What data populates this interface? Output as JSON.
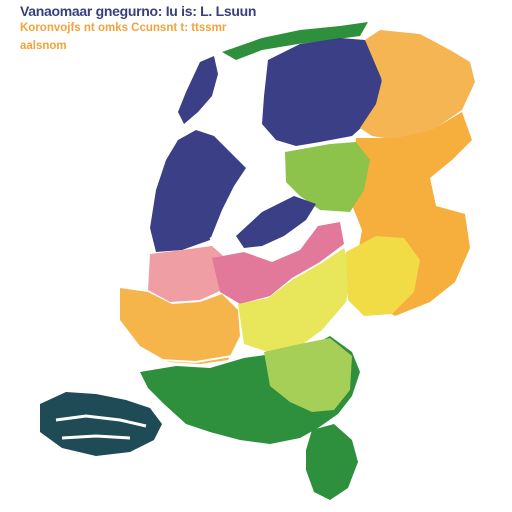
{
  "header": {
    "title": "Vanaomaar gnegurno: Iu is: L. Lsuun",
    "subtitle": "Koronvojfs nt omks Ccunsnt t: ttssmr",
    "subtitle2": "aalsnom"
  },
  "map": {
    "regions": [
      {
        "id": "north-coast",
        "color": "#3b3f86"
      },
      {
        "id": "north-east",
        "color": "#f5b553"
      },
      {
        "id": "east",
        "color": "#f6ae3c"
      },
      {
        "id": "center-green",
        "color": "#8dc24b"
      },
      {
        "id": "west-coast",
        "color": "#3b3f86"
      },
      {
        "id": "lake",
        "color": "#3b3f86"
      },
      {
        "id": "west-pink",
        "color": "#ef9ea4"
      },
      {
        "id": "center-pink",
        "color": "#e2789a"
      },
      {
        "id": "south-west-orange",
        "color": "#f5b54b"
      },
      {
        "id": "central-yellow",
        "color": "#e8e65a"
      },
      {
        "id": "south-east-yellow",
        "color": "#f2dc45"
      },
      {
        "id": "south-green",
        "color": "#2e8f3c"
      },
      {
        "id": "south-lime",
        "color": "#a6cf58"
      },
      {
        "id": "south-tip",
        "color": "#2e8f3c"
      },
      {
        "id": "delta",
        "color": "#1f4b57"
      }
    ]
  }
}
